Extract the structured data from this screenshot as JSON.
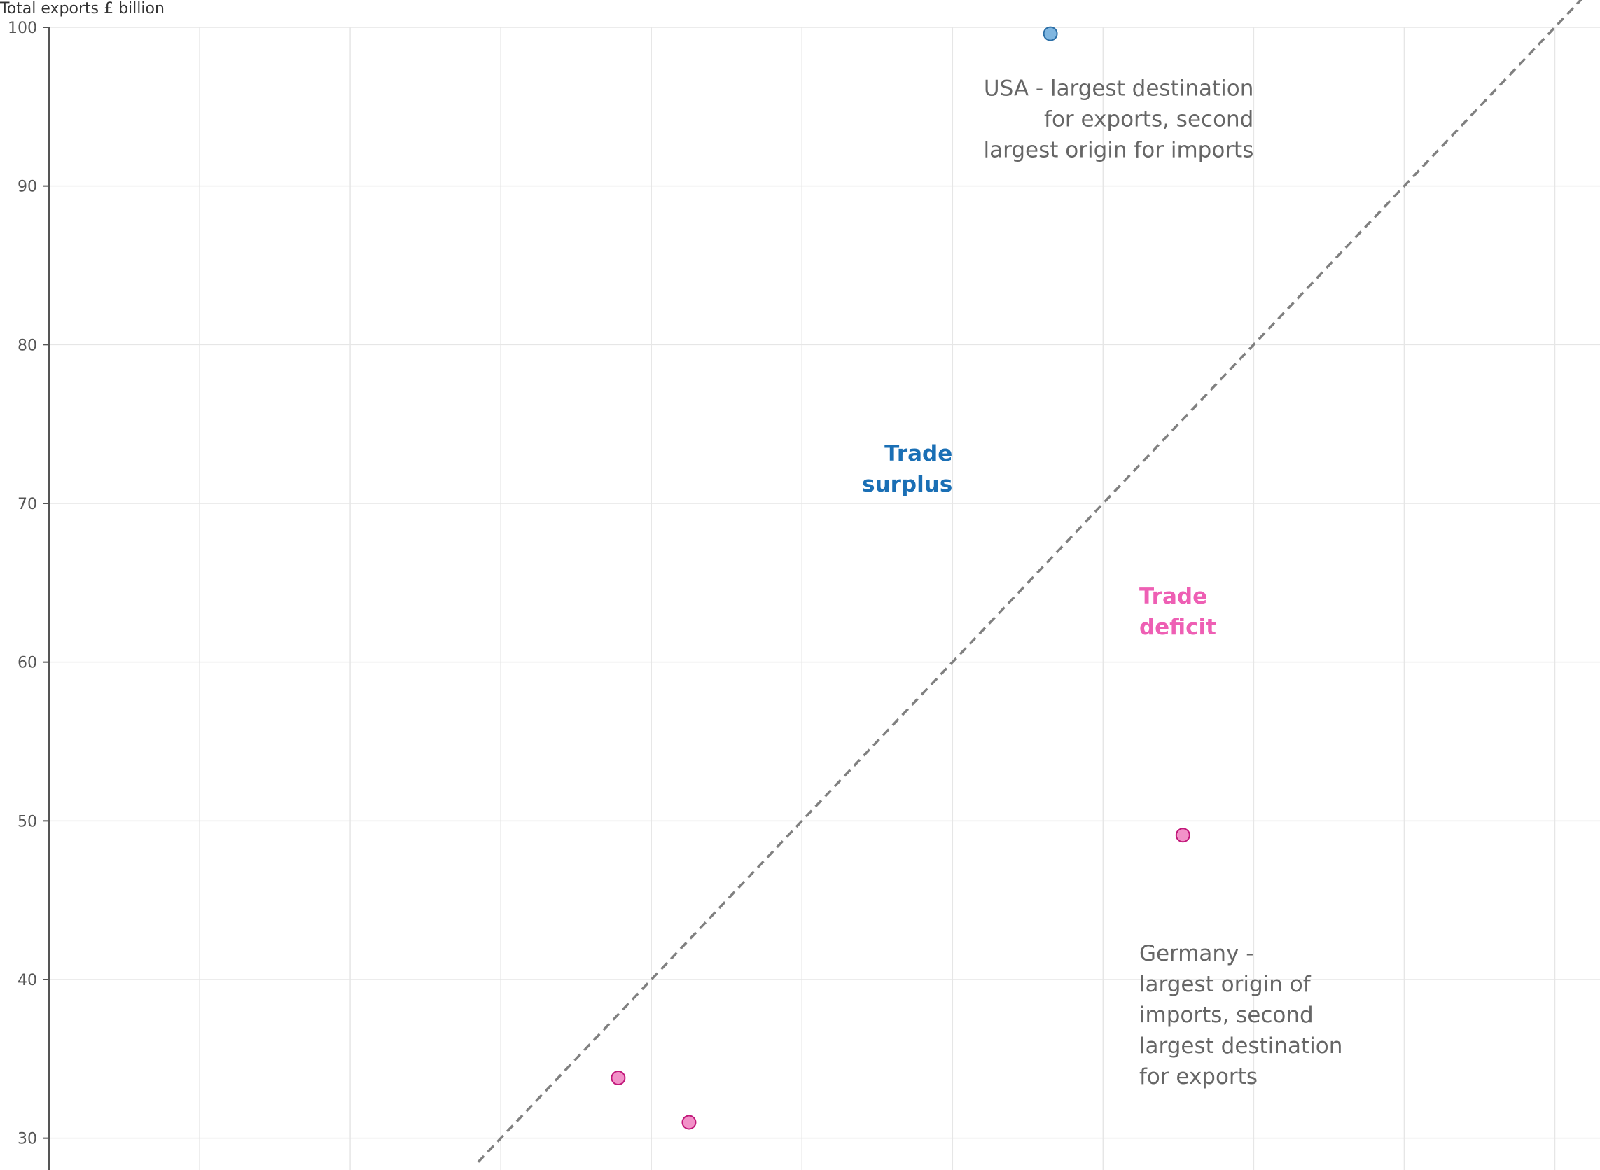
{
  "chart_data": {
    "type": "scatter",
    "ylabel": "Total exports £ billion",
    "xlabel": "",
    "ylim": [
      28,
      100
    ],
    "xlim": [
      0,
      103
    ],
    "yticks": [
      30,
      40,
      50,
      60,
      70,
      80,
      90,
      100
    ],
    "xgrid": [
      10,
      20,
      30,
      40,
      50,
      60,
      70,
      80,
      90,
      100
    ],
    "grid": true,
    "reference_line": {
      "style": "dashed",
      "from": [
        28.5,
        28.5
      ],
      "to": [
        103,
        103
      ]
    },
    "points": [
      {
        "x": 66.5,
        "y": 99.6,
        "color": "#7fb6e0",
        "stroke": "#2b6ea6"
      },
      {
        "x": 75.3,
        "y": 49.1,
        "color": "#f291c8",
        "stroke": "#c2187a"
      },
      {
        "x": 37.8,
        "y": 33.8,
        "color": "#f291c8",
        "stroke": "#c2187a"
      },
      {
        "x": 42.5,
        "y": 31.0,
        "color": "#f291c8",
        "stroke": "#c2187a"
      }
    ],
    "annotations": [
      {
        "lines": [
          "USA - largest destination",
          "for exports, second",
          "largest origin for imports"
        ],
        "x": 80.0,
        "y": 95.7,
        "anchor": "end",
        "style": "note"
      },
      {
        "lines": [
          "Germany -",
          "largest origin of",
          "imports, second",
          "largest destination",
          "for exports"
        ],
        "x": 72.4,
        "y": 41.2,
        "anchor": "start",
        "style": "note"
      },
      {
        "lines": [
          "Trade",
          "surplus"
        ],
        "x": 60.0,
        "y": 72.7,
        "anchor": "end",
        "style": "surplus"
      },
      {
        "lines": [
          "Trade",
          "deficit"
        ],
        "x": 72.4,
        "y": 63.7,
        "anchor": "start",
        "style": "deficit"
      }
    ],
    "colors": {
      "surplus": "#1a6fb5",
      "deficit": "#ee5fb4",
      "note": "#666666"
    }
  }
}
